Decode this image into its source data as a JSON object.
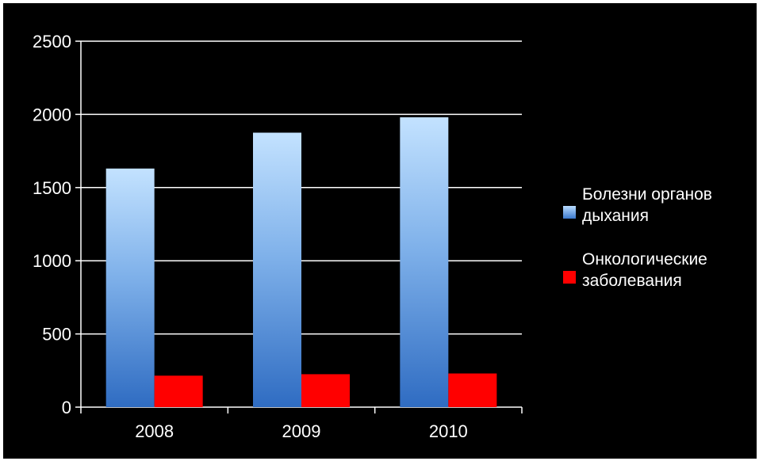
{
  "chart_data": {
    "type": "bar",
    "categories": [
      "2008",
      "2009",
      "2010"
    ],
    "series": [
      {
        "name": "Болезни органов дыхания",
        "values": [
          1630,
          1875,
          1980
        ],
        "color": "#4a86d4"
      },
      {
        "name": "Онкологические заболевания",
        "values": [
          215,
          225,
          230
        ],
        "color": "#ff0000"
      }
    ],
    "yticks": [
      "0",
      "500",
      "1000",
      "1500",
      "2000",
      "2500"
    ],
    "ylim": [
      0,
      2500
    ],
    "grid": true,
    "legend": "right",
    "background": "#000000"
  }
}
